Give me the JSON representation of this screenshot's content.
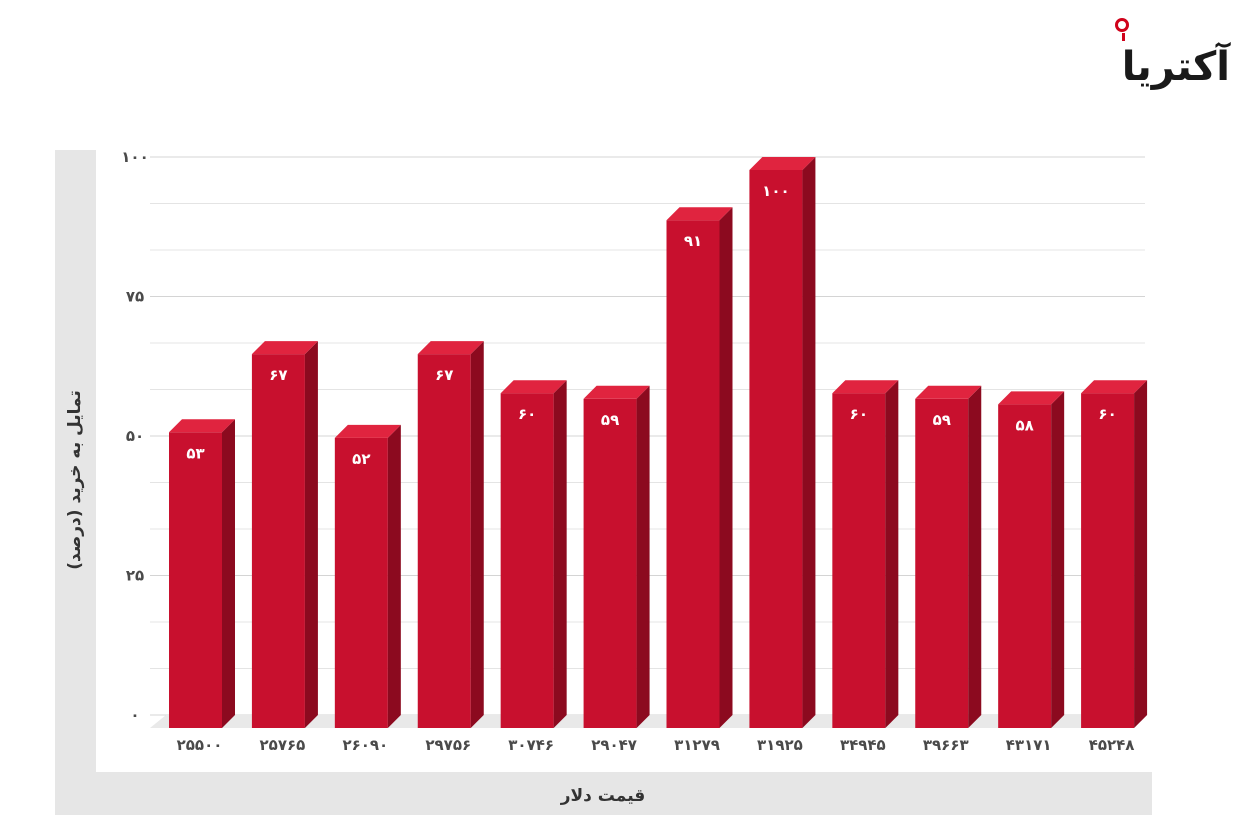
{
  "logo": {
    "text": "آکتریا"
  },
  "chart_data": {
    "type": "bar",
    "xlabel": "قیمت دلار",
    "ylabel": "تمایل به خرید (درصد)",
    "ylim": [
      0,
      100
    ],
    "yticks": [
      "0",
      "25",
      "50",
      "75",
      "100"
    ],
    "ytick_values": [
      0,
      25,
      50,
      75,
      100
    ],
    "grid": true,
    "categories": [
      "25500",
      "25765",
      "26090",
      "29756",
      "30746",
      "29047",
      "31279",
      "31925",
      "34945",
      "39663",
      "43171",
      "45248"
    ],
    "category_labels": [
      "۲۵۵۰۰",
      "۲۵۷۶۵",
      "۲۶۰۹۰",
      "۲۹۷۵۶",
      "۳۰۷۴۶",
      "۲۹۰۴۷",
      "۳۱۲۷۹",
      "۳۱۹۲۵",
      "۳۴۹۴۵",
      "۳۹۶۶۳",
      "۴۳۱۷۱",
      "۴۵۲۴۸"
    ],
    "values": [
      53,
      67,
      52,
      67,
      60,
      59,
      91,
      100,
      60,
      59,
      58,
      60
    ],
    "value_labels": [
      "۵۳",
      "۶۷",
      "۵۲",
      "۶۷",
      "۶۰",
      "۵۹",
      "۹۱",
      "۱۰۰",
      "۶۰",
      "۵۹",
      "۵۸",
      "۶۰"
    ],
    "ytick_labels": [
      "۰",
      "۲۵",
      "۵۰",
      "۷۵",
      "۱۰۰"
    ],
    "colors": {
      "front": "#c8102e",
      "side": "#8c0a1f",
      "top": "#e0243f"
    }
  }
}
